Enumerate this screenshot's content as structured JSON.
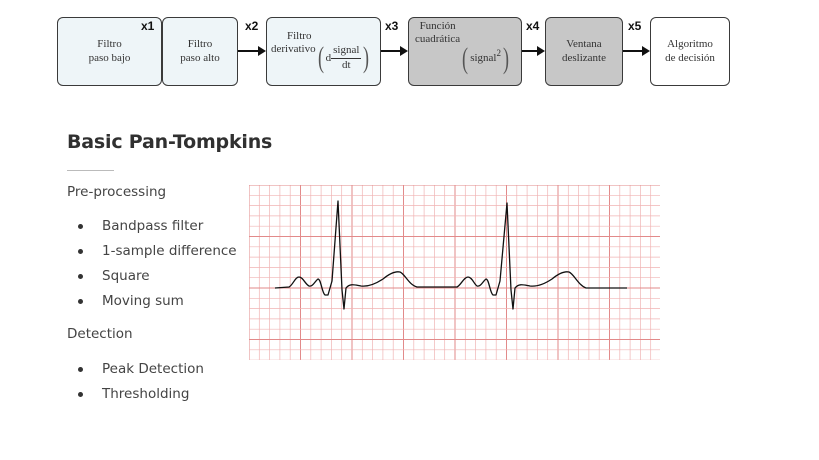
{
  "pipeline": {
    "blocks": [
      {
        "id": "lowpass",
        "label": "Filtro\npaso bajo"
      },
      {
        "id": "highpass",
        "label": "Filtro\npaso alto"
      },
      {
        "id": "derivative",
        "label_top": "Filtro",
        "label_left": "derivativo",
        "prefix": "d",
        "numerator": "signal",
        "denominator": "dt"
      },
      {
        "id": "square",
        "label": "Función\ncuadrática",
        "term": "signal",
        "exponent": "2"
      },
      {
        "id": "window",
        "label": "Ventana\ndeslizante"
      },
      {
        "id": "decision",
        "label": "Algoritmo\nde decisión"
      }
    ],
    "signals": [
      "x1",
      "x2",
      "x3",
      "x4",
      "x5"
    ]
  },
  "title": "Basic Pan-Tompkins",
  "preprocessing": {
    "heading": "Pre-processing",
    "items": [
      "Bandpass filter",
      "1-sample difference",
      "Square",
      "Moving sum"
    ]
  },
  "detection": {
    "heading": "Detection",
    "items": [
      "Peak Detection",
      "Thresholding"
    ]
  },
  "colors": {
    "grid": "#f0b4b4",
    "grid_major": "#e28a8a",
    "trace": "#111111",
    "light_block": "#eef5f8",
    "dark_block": "#c7c7c7"
  }
}
